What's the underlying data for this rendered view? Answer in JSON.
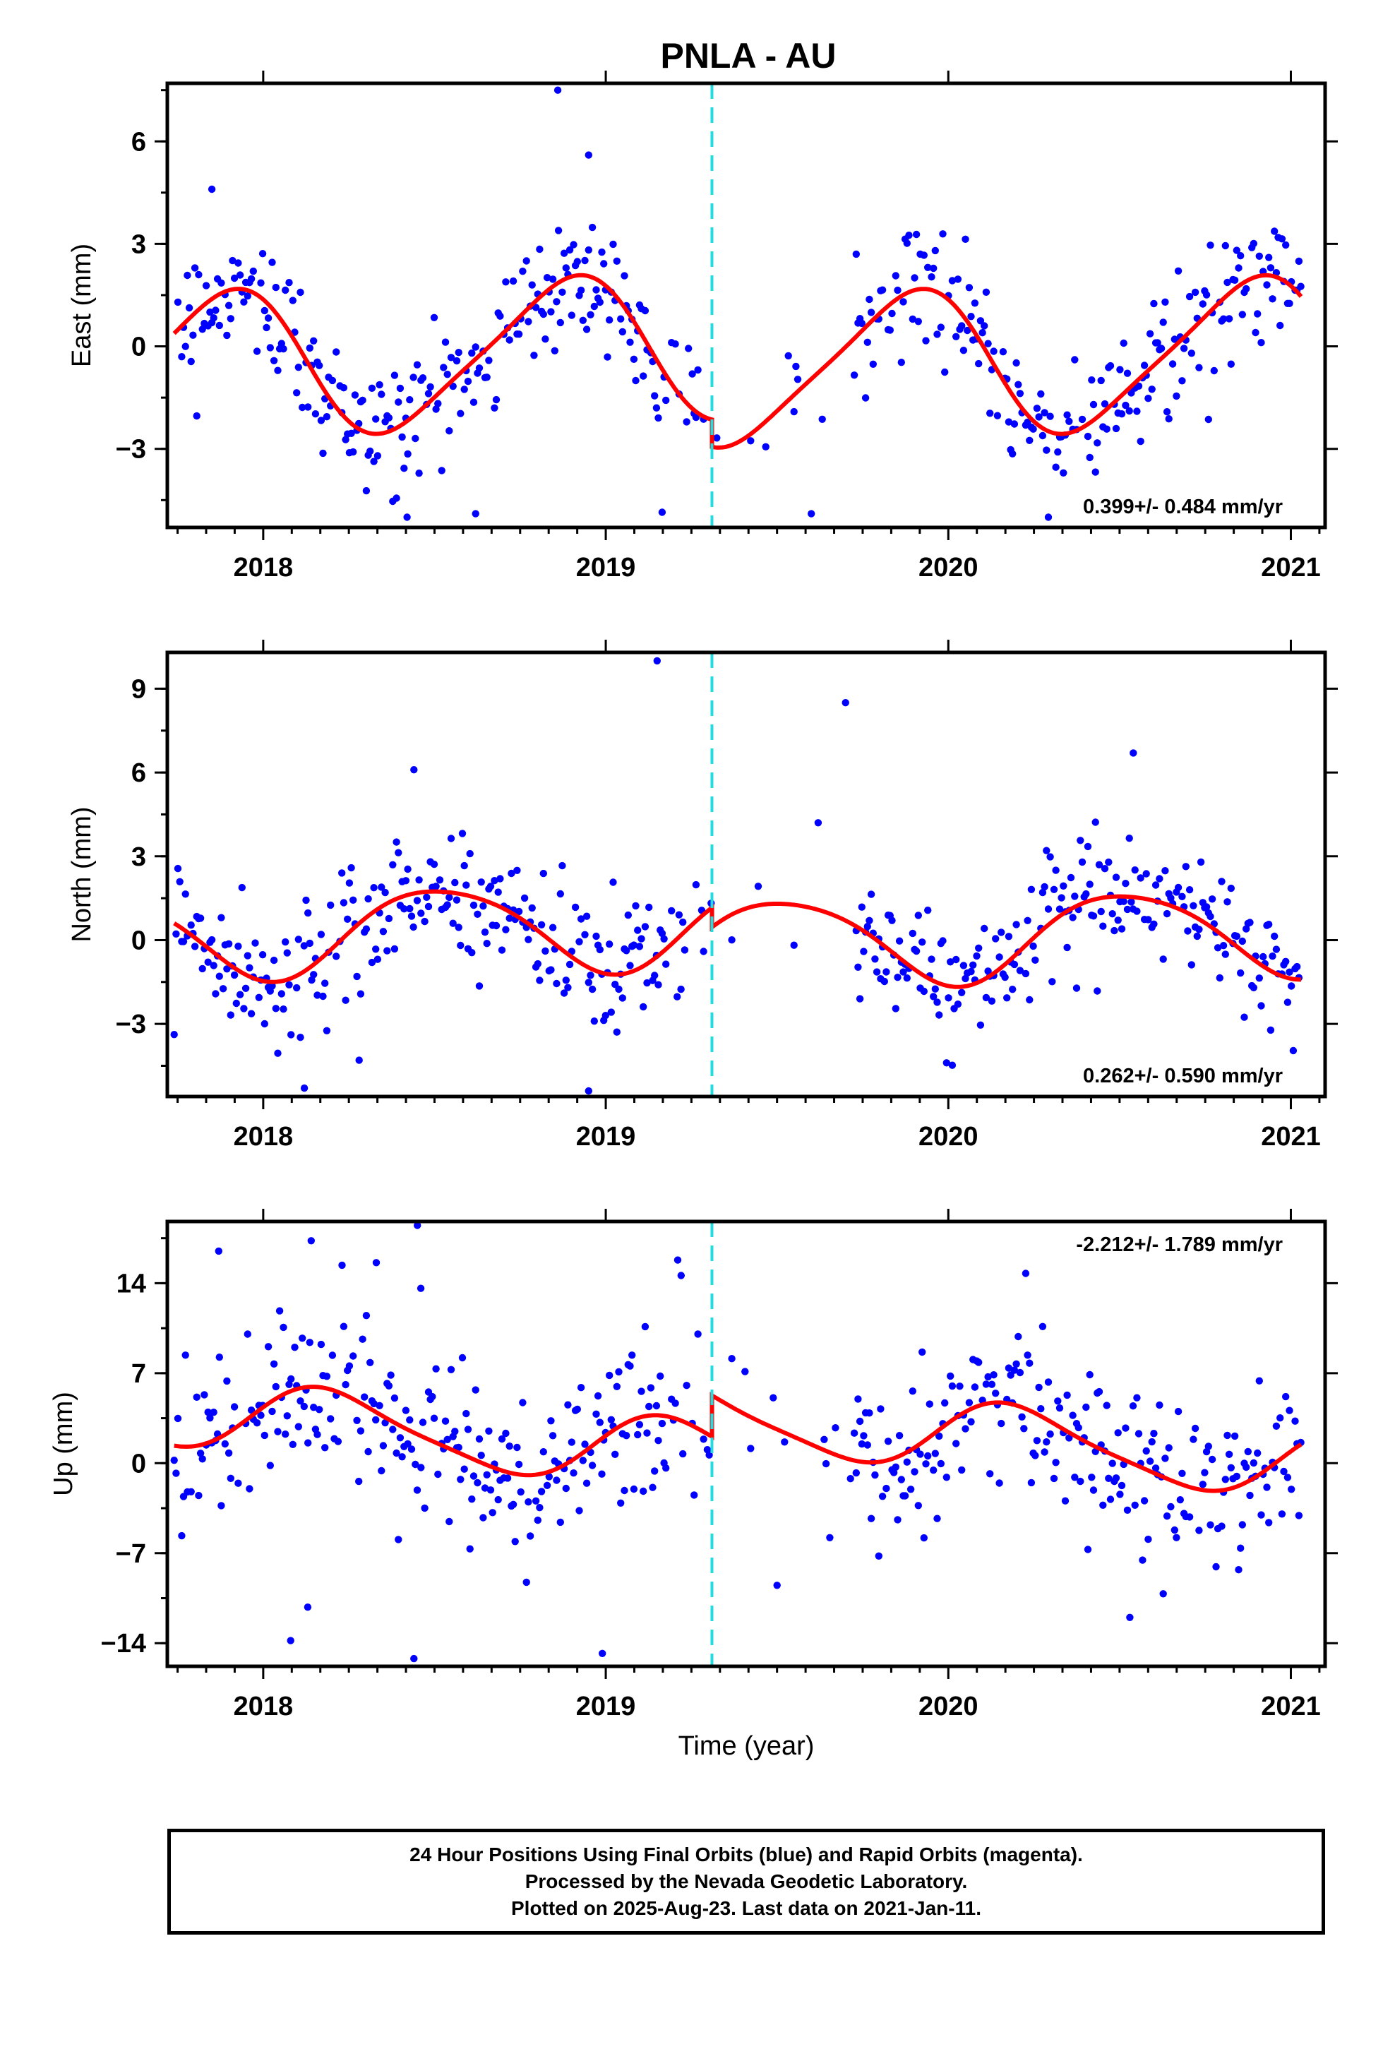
{
  "title": "PNLA - AU",
  "xlabel": "Time (year)",
  "footer": {
    "line1": "24 Hour Positions Using Final Orbits (blue) and Rapid Orbits (magenta).",
    "line2": "Processed by the Nevada Geodetic Laboratory.",
    "line3": "Plotted on 2025-Aug-23. Last data on 2021-Jan-11."
  },
  "colors": {
    "final_orbits": "#0000ff",
    "model_fit": "#ff0000",
    "antenna_change": "#22dddd",
    "frame": "#000000"
  },
  "chart_data": [
    {
      "type": "scatter",
      "component": "east",
      "ylabel": "East (mm)",
      "xlim": [
        2017.72,
        2021.1
      ],
      "ylim": [
        -5.3,
        7.7
      ],
      "xticks": [
        "2018",
        "2019",
        "2020",
        "2021"
      ],
      "yticks": [
        "6",
        "3",
        "0",
        "−3"
      ],
      "ytick_values": [
        6,
        3,
        0,
        -3
      ],
      "rate_text": "0.399+/- 0.484 mm/yr",
      "rate_position": "bottom-right",
      "discontinuity_x": 2019.31,
      "grid": false,
      "seasonal_fit": {
        "mean": 0.05,
        "rate": 0.399,
        "annual_amp": 2.1,
        "annual_phase_year": 2017.88,
        "semiannual_amp": 0.35,
        "semiannual_phase_year": 2018.0,
        "offset_after_break": -0.8
      },
      "gap_range": [
        2019.31,
        2019.72
      ],
      "scatter_sigma": 1.0,
      "outliers": [
        [
          2018.86,
          7.5
        ],
        [
          2018.95,
          5.6
        ],
        [
          2018.42,
          -5.0
        ],
        [
          2018.62,
          -4.9
        ],
        [
          2019.6,
          -4.9
        ],
        [
          2017.85,
          4.6
        ]
      ]
    },
    {
      "type": "scatter",
      "component": "north",
      "ylabel": "North (mm)",
      "xlim": [
        2017.72,
        2021.1
      ],
      "ylim": [
        -5.6,
        10.3
      ],
      "xticks": [
        "2018",
        "2019",
        "2020",
        "2021"
      ],
      "yticks": [
        "9",
        "6",
        "3",
        "0",
        "−3"
      ],
      "ytick_values": [
        9,
        6,
        3,
        0,
        -3
      ],
      "rate_text": "0.262+/- 0.590 mm/yr",
      "rate_position": "bottom-right",
      "discontinuity_x": 2019.31,
      "grid": false,
      "seasonal_fit": {
        "mean": 0.6,
        "rate": 0.262,
        "annual_amp": 1.55,
        "annual_phase_year": 2018.52,
        "semiannual_amp": 0.2,
        "semiannual_phase_year": 2018.3,
        "offset_after_break": -0.7
      },
      "gap_range": [
        2019.31,
        2019.72
      ],
      "scatter_sigma": 1.1,
      "outliers": [
        [
          2019.15,
          10.0
        ],
        [
          2019.7,
          8.5
        ],
        [
          2020.54,
          6.7
        ],
        [
          2018.44,
          6.1
        ],
        [
          2018.95,
          -5.4
        ],
        [
          2018.12,
          -5.3
        ],
        [
          2018.28,
          -4.3
        ],
        [
          2019.62,
          4.2
        ]
      ]
    },
    {
      "type": "scatter",
      "component": "up",
      "ylabel": "Up (mm)",
      "xlim": [
        2017.72,
        2021.1
      ],
      "ylim": [
        -15.8,
        18.8
      ],
      "xticks": [
        "2018",
        "2019",
        "2020",
        "2021"
      ],
      "yticks": [
        "14",
        "7",
        "0",
        "−7",
        "−14"
      ],
      "ytick_values": [
        14,
        7,
        0,
        -7,
        -14
      ],
      "rate_text": "-2.212+/- 1.789 mm/yr",
      "rate_position": "top-right",
      "discontinuity_x": 2019.31,
      "grid": false,
      "seasonal_fit": {
        "mean": 0.3,
        "rate": -2.212,
        "annual_amp": 2.6,
        "annual_phase_year": 2018.2,
        "semiannual_amp": 0.5,
        "semiannual_phase_year": 2018.1,
        "offset_after_break": 3.2
      },
      "gap_range": [
        2019.31,
        2019.72
      ],
      "scatter_sigma": 3.4,
      "outliers": [
        [
          2018.45,
          18.5
        ],
        [
          2018.14,
          17.3
        ],
        [
          2017.87,
          16.5
        ],
        [
          2018.23,
          15.4
        ],
        [
          2018.33,
          15.6
        ],
        [
          2019.21,
          15.8
        ],
        [
          2018.46,
          13.6
        ],
        [
          2019.22,
          14.6
        ],
        [
          2018.44,
          -15.2
        ],
        [
          2018.99,
          -14.8
        ],
        [
          2018.08,
          -13.8
        ],
        [
          2018.13,
          -11.2
        ],
        [
          2020.53,
          -12.0
        ],
        [
          2019.5,
          -9.5
        ]
      ]
    }
  ]
}
